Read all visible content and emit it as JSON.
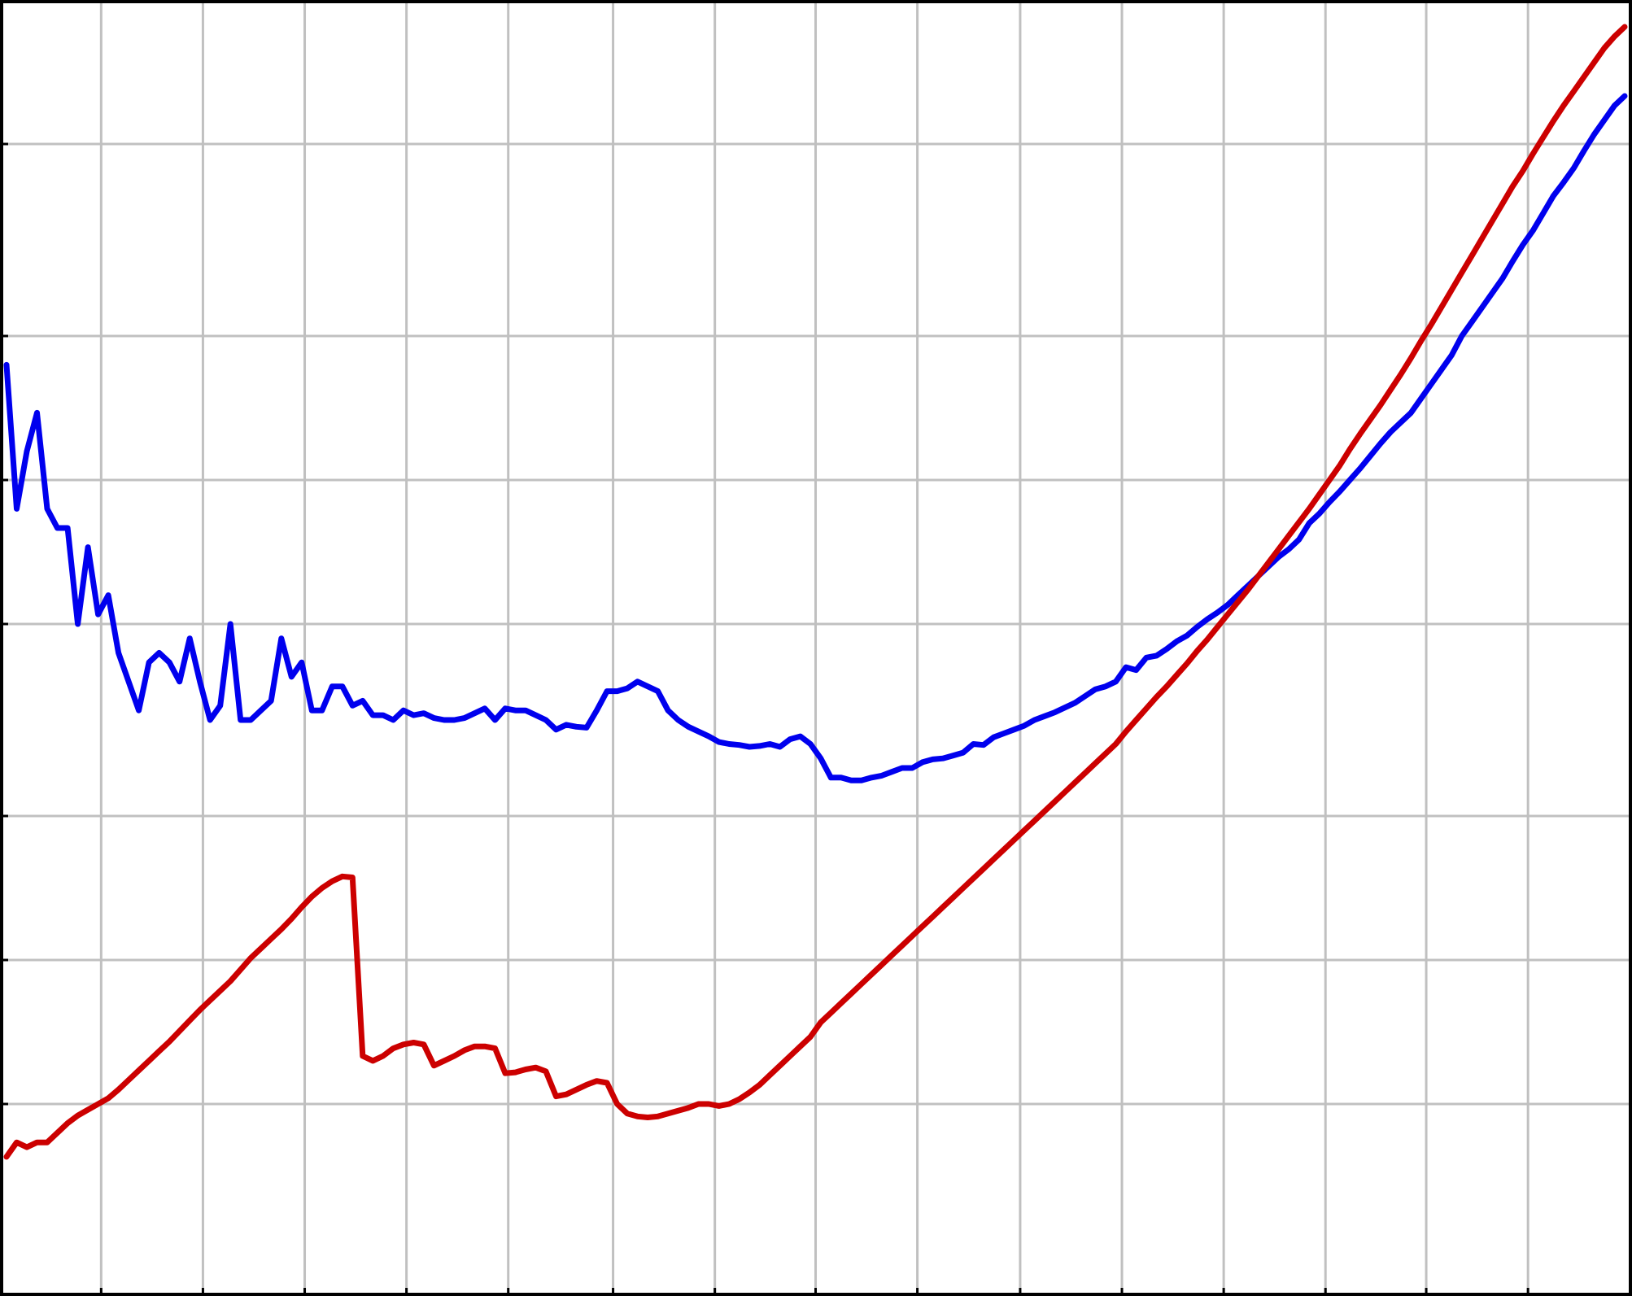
{
  "chart_data": {
    "type": "line",
    "title": "",
    "xlabel": "",
    "ylabel": "",
    "xlim": [
      0,
      159
    ],
    "ylim": [
      0,
      13.5
    ],
    "x_grid_values": [
      9.3,
      19.3,
      29.3,
      39.3,
      49.3,
      59.6,
      69.6,
      79.5,
      89.5,
      99.6,
      109.6,
      119.6,
      129.6,
      139.5,
      149.5
    ],
    "y_grid_values": [
      2,
      3.5,
      5,
      7,
      8.5,
      10,
      12
    ],
    "grid": true,
    "legend": "none",
    "series": [
      {
        "color": "#0000ee",
        "points": [
          [
            0,
            9.7
          ],
          [
            1,
            8.2
          ],
          [
            2,
            8.8
          ],
          [
            3,
            9.2
          ],
          [
            4,
            8.2
          ],
          [
            5,
            8.0
          ],
          [
            6,
            8.0
          ],
          [
            7,
            7.0
          ],
          [
            8,
            7.8
          ],
          [
            9,
            7.1
          ],
          [
            10,
            7.3
          ],
          [
            11,
            6.7
          ],
          [
            12,
            6.4
          ],
          [
            13,
            6.1
          ],
          [
            14,
            6.6
          ],
          [
            15,
            6.7
          ],
          [
            16,
            6.6
          ],
          [
            17,
            6.4
          ],
          [
            18,
            6.85
          ],
          [
            19,
            6.4
          ],
          [
            20,
            6.0
          ],
          [
            21,
            6.15
          ],
          [
            22,
            7.0
          ],
          [
            23,
            6.0
          ],
          [
            24,
            6.0
          ],
          [
            25,
            6.1
          ],
          [
            26,
            6.2
          ],
          [
            27,
            6.85
          ],
          [
            28,
            6.45
          ],
          [
            29,
            6.6
          ],
          [
            30,
            6.1
          ],
          [
            31,
            6.1
          ],
          [
            32,
            6.35
          ],
          [
            33,
            6.35
          ],
          [
            34,
            6.15
          ],
          [
            35,
            6.2
          ],
          [
            36,
            6.05
          ],
          [
            37,
            6.05
          ],
          [
            38,
            6.0
          ],
          [
            39,
            6.1
          ],
          [
            40,
            6.05
          ],
          [
            41,
            6.07
          ],
          [
            42,
            6.02
          ],
          [
            43,
            6.0
          ],
          [
            44,
            6.0
          ],
          [
            45,
            6.02
          ],
          [
            46,
            6.07
          ],
          [
            47,
            6.12
          ],
          [
            48,
            6.0
          ],
          [
            49,
            6.12
          ],
          [
            50,
            6.1
          ],
          [
            51,
            6.1
          ],
          [
            52,
            6.05
          ],
          [
            53,
            6.0
          ],
          [
            54,
            5.9
          ],
          [
            55,
            5.95
          ],
          [
            56,
            5.93
          ],
          [
            57,
            5.92
          ],
          [
            58,
            6.1
          ],
          [
            59,
            6.3
          ],
          [
            60,
            6.3
          ],
          [
            61,
            6.33
          ],
          [
            62,
            6.4
          ],
          [
            63,
            6.35
          ],
          [
            64,
            6.3
          ],
          [
            65,
            6.1
          ],
          [
            66,
            6.0
          ],
          [
            67,
            5.93
          ],
          [
            68,
            5.88
          ],
          [
            69,
            5.83
          ],
          [
            70,
            5.77
          ],
          [
            71,
            5.75
          ],
          [
            72,
            5.74
          ],
          [
            73,
            5.72
          ],
          [
            74,
            5.73
          ],
          [
            75,
            5.75
          ],
          [
            76,
            5.72
          ],
          [
            77,
            5.8
          ],
          [
            78,
            5.83
          ],
          [
            79,
            5.75
          ],
          [
            80,
            5.6
          ],
          [
            81,
            5.4
          ],
          [
            82,
            5.4
          ],
          [
            83,
            5.37
          ],
          [
            84,
            5.37
          ],
          [
            85,
            5.4
          ],
          [
            86,
            5.42
          ],
          [
            87,
            5.46
          ],
          [
            88,
            5.5
          ],
          [
            89,
            5.5
          ],
          [
            90,
            5.56
          ],
          [
            91,
            5.59
          ],
          [
            92,
            5.6
          ],
          [
            93,
            5.63
          ],
          [
            94,
            5.66
          ],
          [
            95,
            5.75
          ],
          [
            96,
            5.74
          ],
          [
            97,
            5.82
          ],
          [
            98,
            5.86
          ],
          [
            99,
            5.9
          ],
          [
            100,
            5.94
          ],
          [
            101,
            6.0
          ],
          [
            102,
            6.04
          ],
          [
            103,
            6.08
          ],
          [
            104,
            6.13
          ],
          [
            105,
            6.18
          ],
          [
            106,
            6.25
          ],
          [
            107,
            6.32
          ],
          [
            108,
            6.35
          ],
          [
            109,
            6.4
          ],
          [
            110,
            6.55
          ],
          [
            111,
            6.52
          ],
          [
            112,
            6.65
          ],
          [
            113,
            6.67
          ],
          [
            114,
            6.74
          ],
          [
            115,
            6.82
          ],
          [
            116,
            6.88
          ],
          [
            117,
            6.97
          ],
          [
            118,
            7.05
          ],
          [
            119,
            7.12
          ],
          [
            120,
            7.2
          ],
          [
            121,
            7.3
          ],
          [
            122,
            7.4
          ],
          [
            123,
            7.5
          ],
          [
            124,
            7.6
          ],
          [
            125,
            7.7
          ],
          [
            126,
            7.78
          ],
          [
            127,
            7.88
          ],
          [
            128,
            8.05
          ],
          [
            129,
            8.15
          ],
          [
            130,
            8.27
          ],
          [
            131,
            8.38
          ],
          [
            132,
            8.5
          ],
          [
            133,
            8.62
          ],
          [
            134,
            8.75
          ],
          [
            135,
            8.88
          ],
          [
            136,
            9.0
          ],
          [
            137,
            9.1
          ],
          [
            138,
            9.2
          ],
          [
            139,
            9.35
          ],
          [
            140,
            9.5
          ],
          [
            141,
            9.65
          ],
          [
            142,
            9.8
          ],
          [
            143,
            10.0
          ],
          [
            144,
            10.15
          ],
          [
            145,
            10.3
          ],
          [
            146,
            10.45
          ],
          [
            147,
            10.6
          ],
          [
            148,
            10.78
          ],
          [
            149,
            10.95
          ],
          [
            150,
            11.1
          ],
          [
            151,
            11.28
          ],
          [
            152,
            11.46
          ],
          [
            153,
            11.6
          ],
          [
            154,
            11.75
          ],
          [
            155,
            11.93
          ],
          [
            156,
            12.1
          ],
          [
            157,
            12.25
          ],
          [
            158,
            12.4
          ],
          [
            159,
            12.5
          ]
        ]
      },
      {
        "color": "#cc0000",
        "points": [
          [
            0,
            1.45
          ],
          [
            1,
            1.6
          ],
          [
            2,
            1.55
          ],
          [
            3,
            1.6
          ],
          [
            4,
            1.6
          ],
          [
            5,
            1.7
          ],
          [
            6,
            1.8
          ],
          [
            7,
            1.88
          ],
          [
            8,
            1.94
          ],
          [
            9,
            2.0
          ],
          [
            10,
            2.06
          ],
          [
            11,
            2.15
          ],
          [
            12,
            2.25
          ],
          [
            13,
            2.35
          ],
          [
            14,
            2.45
          ],
          [
            15,
            2.55
          ],
          [
            16,
            2.65
          ],
          [
            17,
            2.76
          ],
          [
            18,
            2.87
          ],
          [
            19,
            2.98
          ],
          [
            20,
            3.08
          ],
          [
            21,
            3.18
          ],
          [
            22,
            3.28
          ],
          [
            23,
            3.4
          ],
          [
            24,
            3.52
          ],
          [
            25,
            3.62
          ],
          [
            26,
            3.72
          ],
          [
            27,
            3.82
          ],
          [
            28,
            3.93
          ],
          [
            29,
            4.05
          ],
          [
            30,
            4.16
          ],
          [
            31,
            4.25
          ],
          [
            32,
            4.32
          ],
          [
            33,
            4.37
          ],
          [
            34,
            4.36
          ],
          [
            35,
            2.5
          ],
          [
            36,
            2.45
          ],
          [
            37,
            2.5
          ],
          [
            38,
            2.58
          ],
          [
            39,
            2.62
          ],
          [
            40,
            2.64
          ],
          [
            41,
            2.62
          ],
          [
            42,
            2.4
          ],
          [
            43,
            2.45
          ],
          [
            44,
            2.5
          ],
          [
            45,
            2.56
          ],
          [
            46,
            2.6
          ],
          [
            47,
            2.6
          ],
          [
            48,
            2.58
          ],
          [
            49,
            2.32
          ],
          [
            50,
            2.33
          ],
          [
            51,
            2.36
          ],
          [
            52,
            2.38
          ],
          [
            53,
            2.34
          ],
          [
            54,
            2.08
          ],
          [
            55,
            2.1
          ],
          [
            56,
            2.15
          ],
          [
            57,
            2.2
          ],
          [
            58,
            2.24
          ],
          [
            59,
            2.22
          ],
          [
            60,
            2.0
          ],
          [
            61,
            1.9
          ],
          [
            62,
            1.87
          ],
          [
            63,
            1.86
          ],
          [
            64,
            1.87
          ],
          [
            65,
            1.9
          ],
          [
            66,
            1.93
          ],
          [
            67,
            1.96
          ],
          [
            68,
            2.0
          ],
          [
            69,
            2.0
          ],
          [
            70,
            1.98
          ],
          [
            71,
            2.0
          ],
          [
            72,
            2.05
          ],
          [
            73,
            2.12
          ],
          [
            74,
            2.2
          ],
          [
            75,
            2.3
          ],
          [
            76,
            2.4
          ],
          [
            77,
            2.5
          ],
          [
            78,
            2.6
          ],
          [
            79,
            2.7
          ],
          [
            80,
            2.85
          ],
          [
            81,
            2.95
          ],
          [
            82,
            3.05
          ],
          [
            83,
            3.15
          ],
          [
            84,
            3.25
          ],
          [
            85,
            3.35
          ],
          [
            86,
            3.45
          ],
          [
            87,
            3.55
          ],
          [
            88,
            3.65
          ],
          [
            89,
            3.75
          ],
          [
            90,
            3.85
          ],
          [
            91,
            3.95
          ],
          [
            92,
            4.05
          ],
          [
            93,
            4.15
          ],
          [
            94,
            4.25
          ],
          [
            95,
            4.35
          ],
          [
            96,
            4.45
          ],
          [
            97,
            4.55
          ],
          [
            98,
            4.65
          ],
          [
            99,
            4.75
          ],
          [
            100,
            4.85
          ],
          [
            101,
            4.95
          ],
          [
            102,
            5.05
          ],
          [
            103,
            5.15
          ],
          [
            104,
            5.25
          ],
          [
            105,
            5.35
          ],
          [
            106,
            5.45
          ],
          [
            107,
            5.55
          ],
          [
            108,
            5.65
          ],
          [
            109,
            5.75
          ],
          [
            110,
            5.88
          ],
          [
            111,
            6.0
          ],
          [
            112,
            6.12
          ],
          [
            113,
            6.24
          ],
          [
            114,
            6.35
          ],
          [
            115,
            6.47
          ],
          [
            116,
            6.59
          ],
          [
            117,
            6.72
          ],
          [
            118,
            6.84
          ],
          [
            119,
            6.97
          ],
          [
            120,
            7.1
          ],
          [
            121,
            7.23
          ],
          [
            122,
            7.36
          ],
          [
            123,
            7.5
          ],
          [
            124,
            7.64
          ],
          [
            125,
            7.78
          ],
          [
            126,
            7.92
          ],
          [
            127,
            8.06
          ],
          [
            128,
            8.2
          ],
          [
            129,
            8.35
          ],
          [
            130,
            8.5
          ],
          [
            131,
            8.65
          ],
          [
            132,
            8.82
          ],
          [
            133,
            8.98
          ],
          [
            134,
            9.13
          ],
          [
            135,
            9.28
          ],
          [
            136,
            9.44
          ],
          [
            137,
            9.6
          ],
          [
            138,
            9.77
          ],
          [
            139,
            9.95
          ],
          [
            140,
            10.12
          ],
          [
            141,
            10.3
          ],
          [
            142,
            10.48
          ],
          [
            143,
            10.66
          ],
          [
            144,
            10.84
          ],
          [
            145,
            11.02
          ],
          [
            146,
            11.2
          ],
          [
            147,
            11.38
          ],
          [
            148,
            11.56
          ],
          [
            149,
            11.72
          ],
          [
            150,
            11.9
          ],
          [
            151,
            12.07
          ],
          [
            152,
            12.24
          ],
          [
            153,
            12.4
          ],
          [
            154,
            12.55
          ],
          [
            155,
            12.7
          ],
          [
            156,
            12.85
          ],
          [
            157,
            13.0
          ],
          [
            158,
            13.12
          ],
          [
            159,
            13.22
          ]
        ]
      }
    ]
  }
}
